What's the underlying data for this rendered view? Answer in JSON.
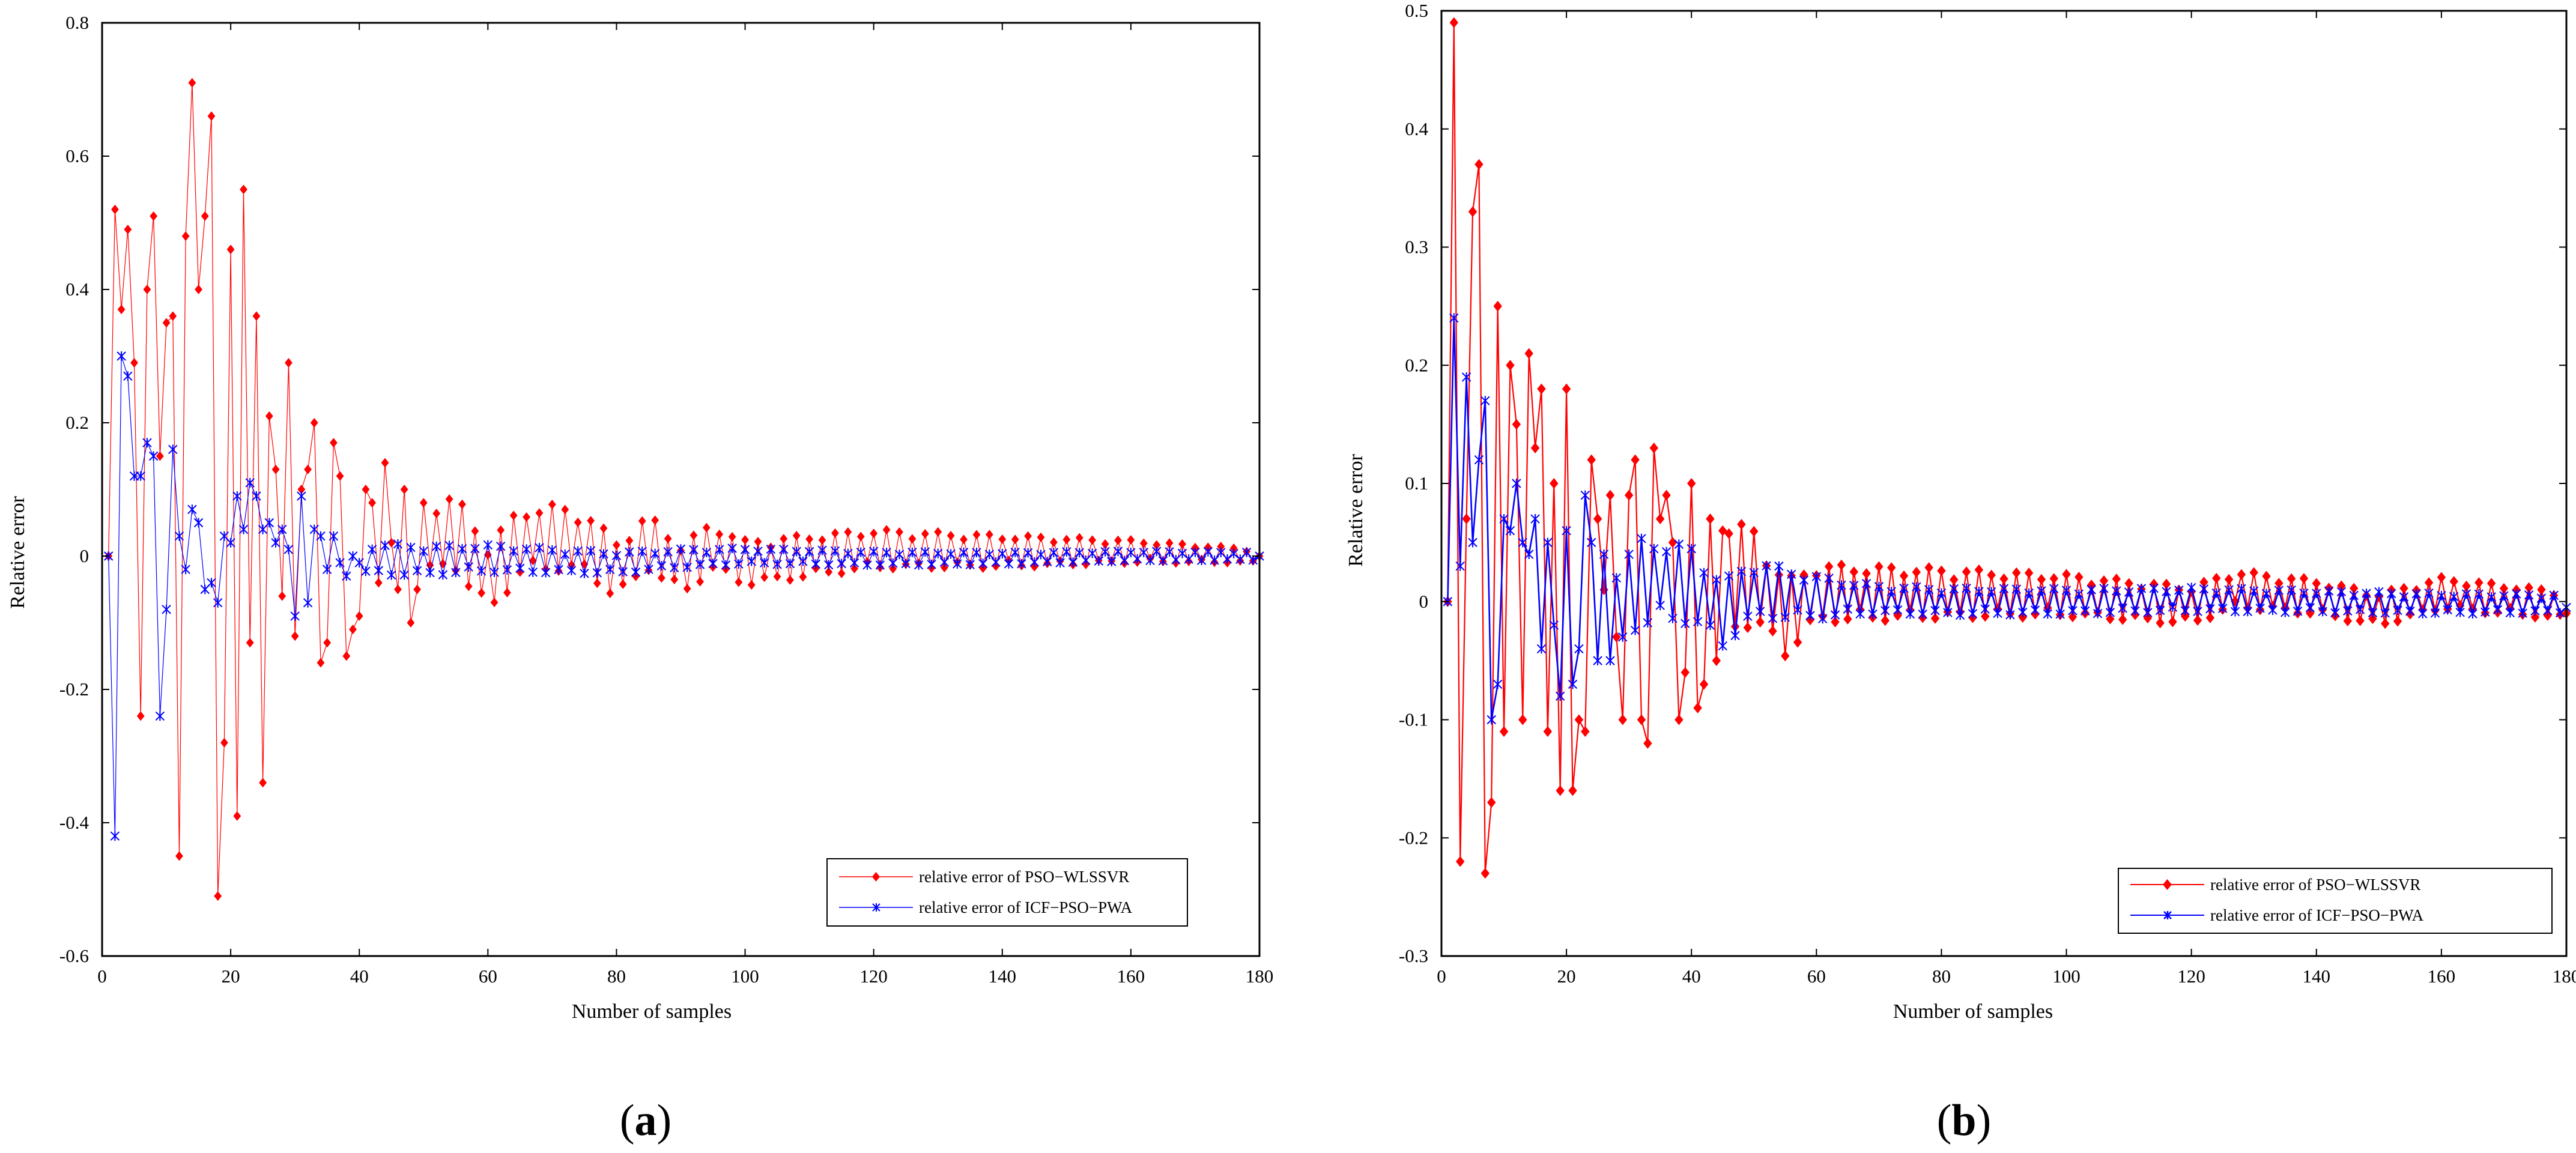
{
  "chart_data": [
    {
      "type": "line",
      "panel_label": "(a)",
      "xlabel": "Number of samples",
      "ylabel": "Relative error",
      "xlim": [
        0,
        180
      ],
      "ylim": [
        -0.6,
        0.8
      ],
      "xticks": [
        0,
        20,
        40,
        60,
        80,
        100,
        120,
        140,
        160,
        180
      ],
      "yticks": [
        -0.6,
        -0.4,
        -0.2,
        0,
        0.2,
        0.4,
        0.6,
        0.8
      ],
      "legend_position": "bottom-right",
      "series": [
        {
          "name": "relative error of PSO−WLSSVR",
          "color": "#ff0000",
          "marker": "diamond",
          "anchors": [
            [
              1,
              0
            ],
            [
              2,
              0.52
            ],
            [
              3,
              0.37
            ],
            [
              4,
              0.49
            ],
            [
              5,
              0.29
            ],
            [
              6,
              -0.24
            ],
            [
              7,
              0.4
            ],
            [
              8,
              0.51
            ],
            [
              9,
              0.15
            ],
            [
              10,
              0.35
            ],
            [
              11,
              0.36
            ],
            [
              12,
              -0.45
            ],
            [
              13,
              0.48
            ],
            [
              14,
              0.71
            ],
            [
              15,
              0.4
            ],
            [
              16,
              0.51
            ],
            [
              17,
              0.66
            ],
            [
              18,
              -0.51
            ],
            [
              19,
              -0.28
            ],
            [
              20,
              0.46
            ],
            [
              21,
              -0.39
            ],
            [
              22,
              0.55
            ],
            [
              23,
              -0.13
            ],
            [
              24,
              0.36
            ],
            [
              25,
              -0.34
            ],
            [
              26,
              0.21
            ],
            [
              27,
              0.13
            ],
            [
              28,
              -0.06
            ],
            [
              29,
              0.29
            ],
            [
              30,
              -0.12
            ],
            [
              31,
              0.1
            ],
            [
              32,
              0.13
            ],
            [
              33,
              0.2
            ],
            [
              34,
              -0.16
            ],
            [
              35,
              -0.13
            ],
            [
              36,
              0.17
            ],
            [
              37,
              0.12
            ],
            [
              38,
              -0.15
            ],
            [
              39,
              -0.11
            ],
            [
              40,
              -0.09
            ],
            [
              41,
              0.1
            ],
            [
              42,
              0.08
            ],
            [
              43,
              -0.04
            ],
            [
              44,
              0.14
            ],
            [
              45,
              0.02
            ],
            [
              46,
              -0.05
            ],
            [
              47,
              0.1
            ],
            [
              48,
              -0.1
            ],
            [
              49,
              -0.05
            ],
            [
              50,
              0.08
            ],
            [
              55,
              0.1
            ],
            [
              60,
              -0.1
            ],
            [
              65,
              0.06
            ],
            [
              70,
              0.08
            ],
            [
              75,
              0.06
            ],
            [
              80,
              -0.06
            ],
            [
              85,
              0.06
            ],
            [
              90,
              -0.06
            ],
            [
              95,
              0.04
            ],
            [
              100,
              -0.03
            ],
            [
              120,
              0.03
            ],
            [
              140,
              0.02
            ],
            [
              160,
              0.02
            ],
            [
              180,
              0
            ]
          ],
          "decay": [
            [
              50,
              0.06
            ],
            [
              100,
              0.035
            ],
            [
              140,
              0.025
            ],
            [
              180,
              0.01
            ]
          ]
        },
        {
          "name": "relative error of ICF−PSO−PWA",
          "color": "#0000ff",
          "marker": "star",
          "anchors": [
            [
              1,
              0
            ],
            [
              2,
              -0.42
            ],
            [
              3,
              0.3
            ],
            [
              4,
              0.27
            ],
            [
              5,
              0.12
            ],
            [
              6,
              0.12
            ],
            [
              7,
              0.17
            ],
            [
              8,
              0.15
            ],
            [
              9,
              -0.24
            ],
            [
              10,
              -0.08
            ],
            [
              11,
              0.16
            ],
            [
              12,
              0.03
            ],
            [
              13,
              -0.02
            ],
            [
              14,
              0.07
            ],
            [
              15,
              0.05
            ],
            [
              16,
              -0.05
            ],
            [
              17,
              -0.04
            ],
            [
              18,
              -0.07
            ],
            [
              19,
              0.03
            ],
            [
              20,
              0.02
            ],
            [
              21,
              0.09
            ],
            [
              22,
              0.04
            ],
            [
              23,
              0.11
            ],
            [
              24,
              0.09
            ],
            [
              25,
              0.04
            ],
            [
              26,
              0.05
            ],
            [
              27,
              0.02
            ],
            [
              28,
              0.04
            ],
            [
              29,
              0.01
            ],
            [
              30,
              -0.09
            ],
            [
              31,
              0.09
            ],
            [
              32,
              -0.07
            ],
            [
              33,
              0.04
            ],
            [
              34,
              0.03
            ],
            [
              35,
              -0.02
            ],
            [
              36,
              0.03
            ],
            [
              37,
              -0.01
            ],
            [
              38,
              -0.03
            ],
            [
              39,
              0
            ],
            [
              40,
              -0.01
            ],
            [
              50,
              -0.02
            ],
            [
              60,
              -0.01
            ],
            [
              70,
              -0.02
            ],
            [
              80,
              -0.03
            ],
            [
              90,
              -0.01
            ],
            [
              100,
              0
            ],
            [
              120,
              -0.01
            ],
            [
              140,
              -0.01
            ],
            [
              160,
              0
            ],
            [
              180,
              0
            ]
          ],
          "decay": [
            [
              40,
              0.025
            ],
            [
              100,
              0.012
            ],
            [
              180,
              0.006
            ]
          ]
        }
      ]
    },
    {
      "type": "line",
      "panel_label": "(b)",
      "xlabel": "Number of samples",
      "ylabel": "Relative error",
      "xlim": [
        0,
        180
      ],
      "ylim": [
        -0.3,
        0.5
      ],
      "xticks": [
        0,
        20,
        40,
        60,
        80,
        100,
        120,
        140,
        160,
        180
      ],
      "yticks": [
        -0.3,
        -0.2,
        -0.1,
        0,
        0.1,
        0.2,
        0.3,
        0.4,
        0.5
      ],
      "legend_position": "bottom-right",
      "series": [
        {
          "name": "relative error of PSO−WLSSVR",
          "color": "#ff0000",
          "marker": "diamond",
          "anchors": [
            [
              1,
              0
            ],
            [
              2,
              0.49
            ],
            [
              3,
              -0.22
            ],
            [
              4,
              0.07
            ],
            [
              5,
              0.33
            ],
            [
              6,
              0.37
            ],
            [
              7,
              -0.23
            ],
            [
              8,
              -0.17
            ],
            [
              9,
              0.25
            ],
            [
              10,
              -0.11
            ],
            [
              11,
              0.2
            ],
            [
              12,
              0.15
            ],
            [
              13,
              -0.1
            ],
            [
              14,
              0.21
            ],
            [
              15,
              0.13
            ],
            [
              16,
              0.18
            ],
            [
              17,
              -0.11
            ],
            [
              18,
              0.1
            ],
            [
              19,
              -0.16
            ],
            [
              20,
              0.18
            ],
            [
              21,
              -0.16
            ],
            [
              22,
              -0.1
            ],
            [
              23,
              -0.11
            ],
            [
              24,
              0.12
            ],
            [
              25,
              0.07
            ],
            [
              26,
              0.01
            ],
            [
              27,
              0.09
            ],
            [
              28,
              -0.03
            ],
            [
              29,
              -0.1
            ],
            [
              30,
              0.09
            ],
            [
              31,
              0.12
            ],
            [
              32,
              -0.1
            ],
            [
              33,
              -0.12
            ],
            [
              34,
              0.13
            ],
            [
              35,
              0.07
            ],
            [
              36,
              0.09
            ],
            [
              37,
              0.05
            ],
            [
              38,
              -0.1
            ],
            [
              39,
              -0.06
            ],
            [
              40,
              0.1
            ],
            [
              41,
              -0.09
            ],
            [
              42,
              -0.07
            ],
            [
              43,
              0.07
            ],
            [
              44,
              -0.05
            ],
            [
              45,
              0.06
            ],
            [
              50,
              0.06
            ],
            [
              55,
              -0.04
            ],
            [
              60,
              0.02
            ],
            [
              80,
              0.02
            ],
            [
              100,
              0.015
            ],
            [
              120,
              -0.01
            ],
            [
              127,
              0.03
            ],
            [
              140,
              0.01
            ],
            [
              150,
              -0.02
            ],
            [
              160,
              0.02
            ],
            [
              180,
              -0.01
            ]
          ],
          "decay": [
            [
              45,
              0.05
            ],
            [
              60,
              0.025
            ],
            [
              100,
              0.018
            ],
            [
              180,
              0.012
            ]
          ]
        },
        {
          "name": "relative error of ICF−PSO−PWA",
          "color": "#0000ff",
          "marker": "star",
          "anchors": [
            [
              1,
              0
            ],
            [
              2,
              0.24
            ],
            [
              3,
              0.03
            ],
            [
              4,
              0.19
            ],
            [
              5,
              0.05
            ],
            [
              6,
              0.12
            ],
            [
              7,
              0.17
            ],
            [
              8,
              -0.1
            ],
            [
              9,
              -0.07
            ],
            [
              10,
              0.07
            ],
            [
              11,
              0.06
            ],
            [
              12,
              0.1
            ],
            [
              13,
              0.05
            ],
            [
              14,
              0.04
            ],
            [
              15,
              0.07
            ],
            [
              16,
              -0.04
            ],
            [
              17,
              0.05
            ],
            [
              18,
              -0.02
            ],
            [
              19,
              -0.08
            ],
            [
              20,
              0.06
            ],
            [
              21,
              -0.07
            ],
            [
              22,
              -0.04
            ],
            [
              23,
              0.09
            ],
            [
              24,
              0.05
            ],
            [
              25,
              -0.05
            ],
            [
              26,
              0.04
            ],
            [
              27,
              -0.05
            ],
            [
              28,
              0.02
            ],
            [
              29,
              -0.03
            ],
            [
              30,
              0.04
            ],
            [
              35,
              0.05
            ],
            [
              40,
              0.04
            ],
            [
              45,
              -0.03
            ],
            [
              50,
              0.03
            ],
            [
              60,
              0.01
            ],
            [
              80,
              0
            ],
            [
              100,
              0
            ],
            [
              120,
              0.005
            ],
            [
              140,
              0
            ],
            [
              160,
              -0.005
            ],
            [
              180,
              -0.005
            ]
          ],
          "decay": [
            [
              30,
              0.04
            ],
            [
              50,
              0.025
            ],
            [
              70,
              0.012
            ],
            [
              180,
              0.008
            ]
          ]
        }
      ]
    }
  ]
}
